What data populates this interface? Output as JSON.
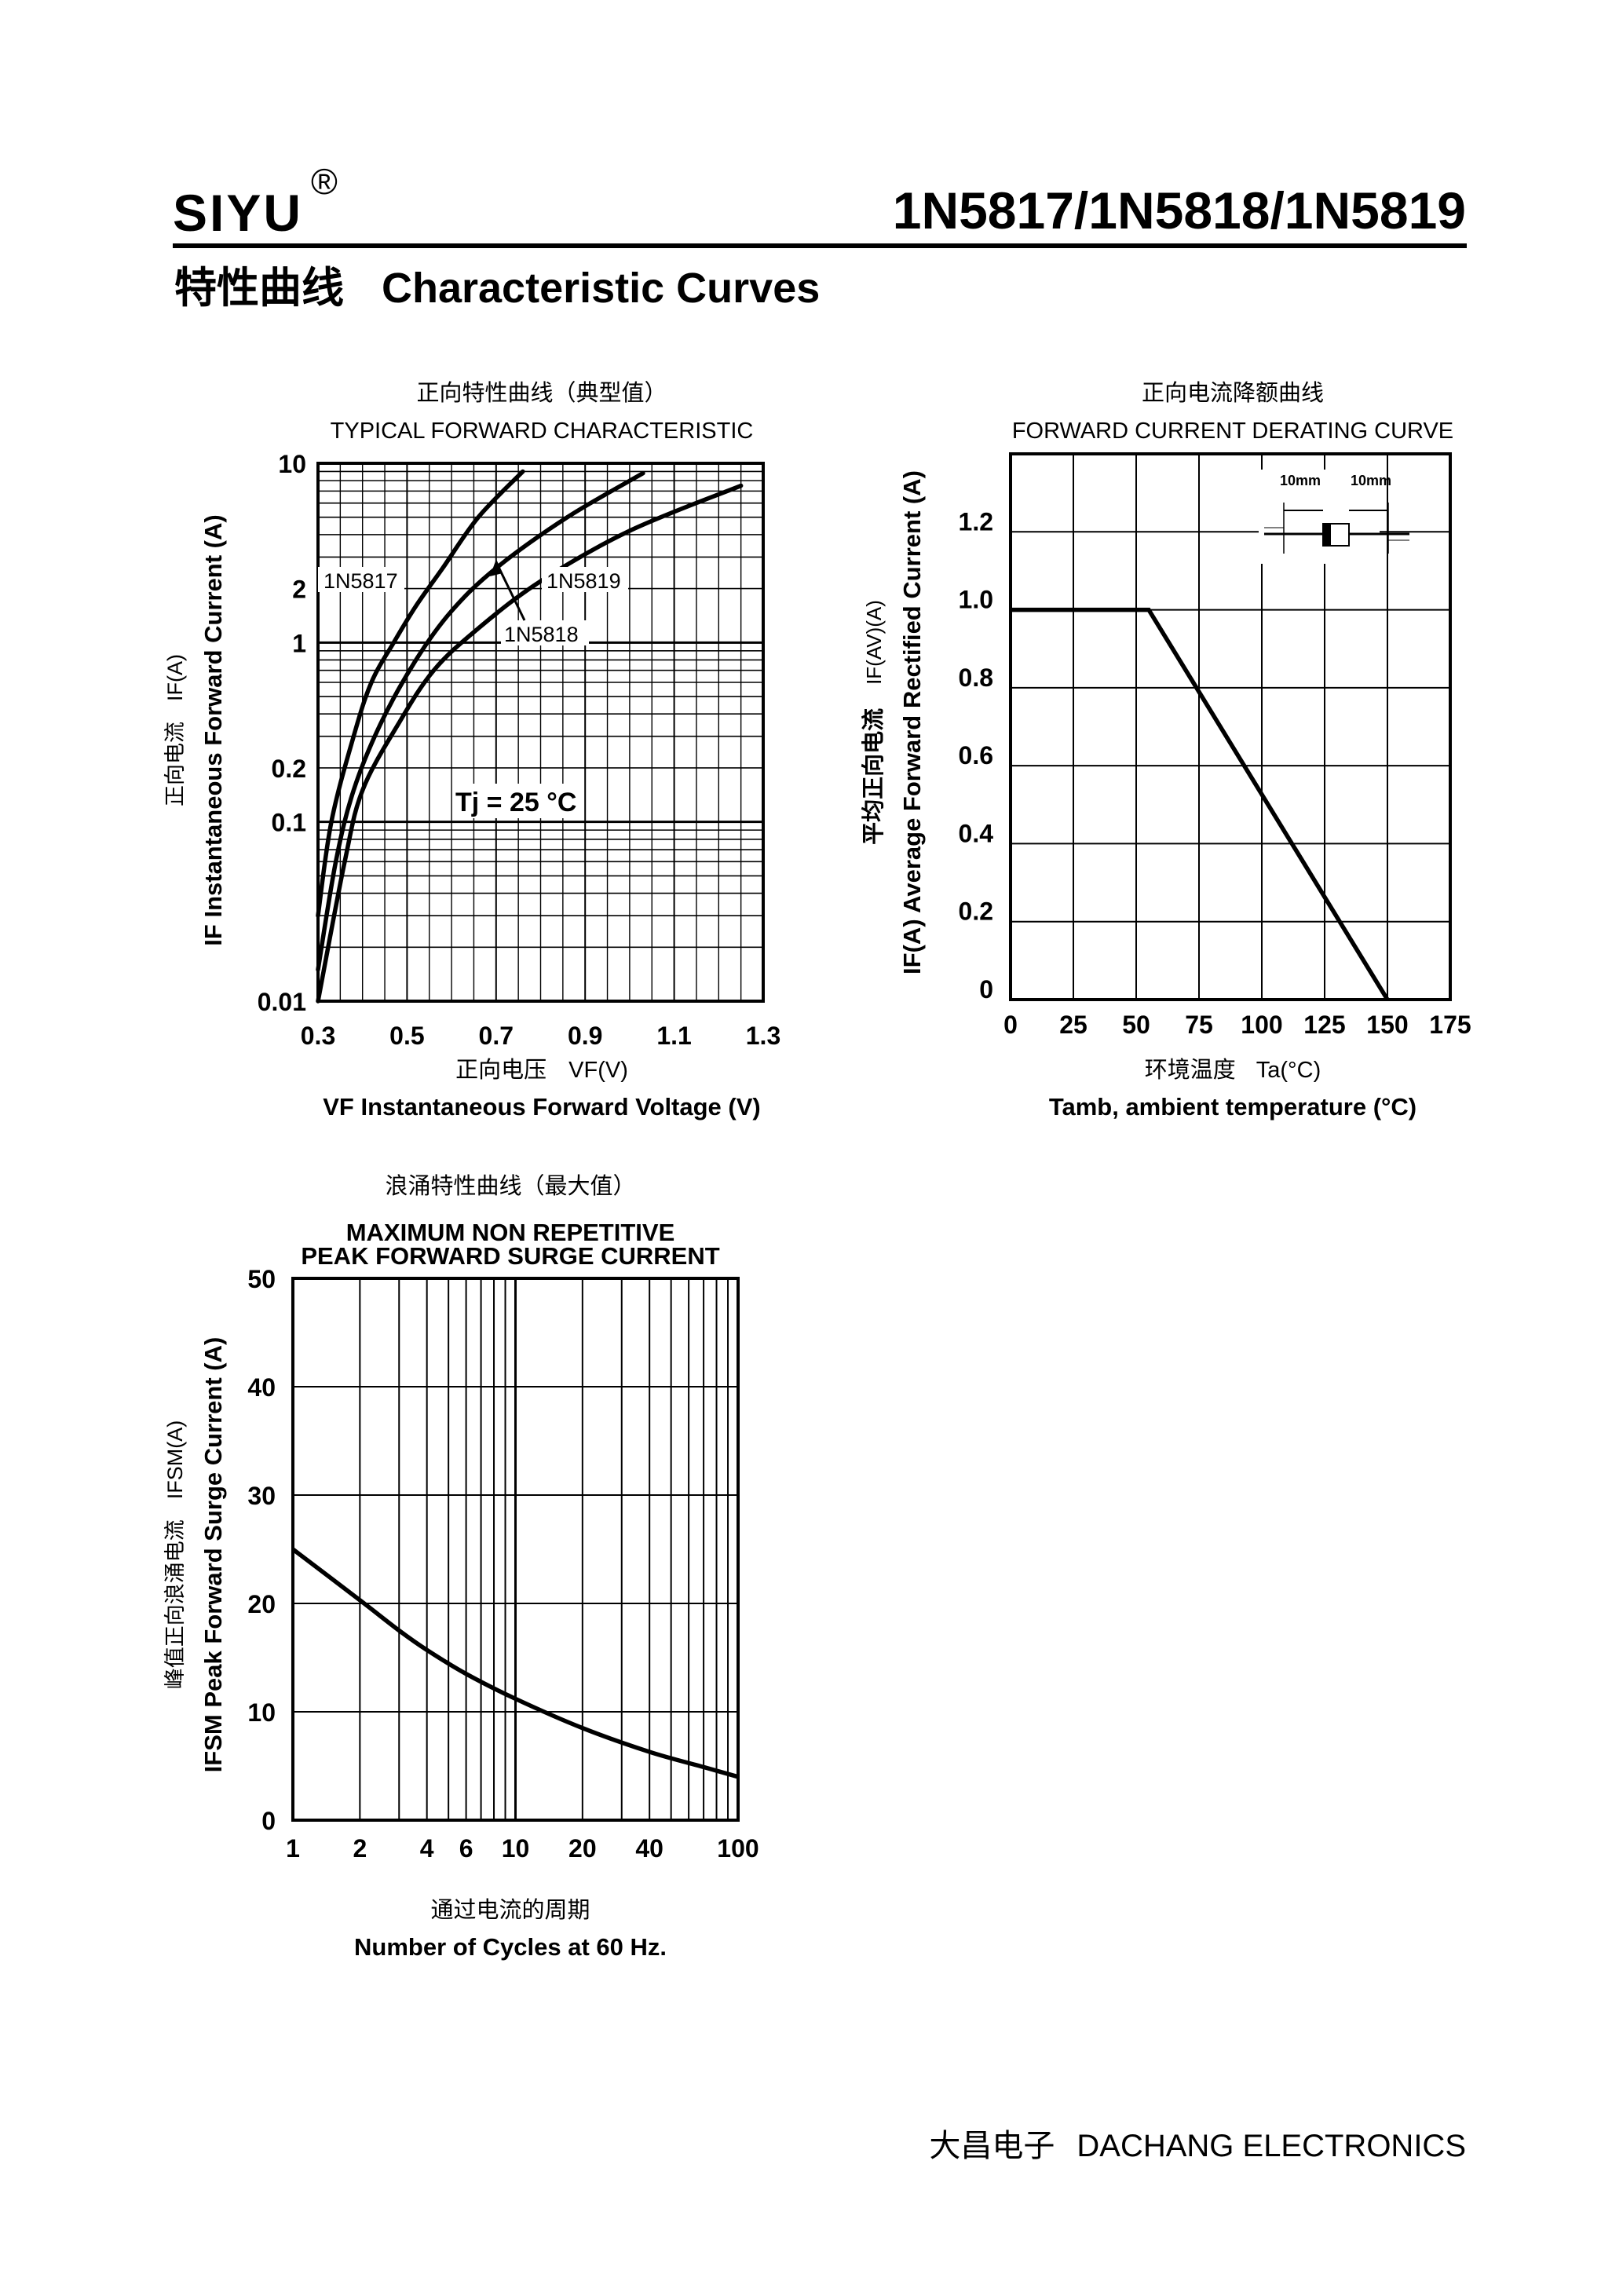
{
  "header": {
    "brand": "SIYU",
    "registered_mark": "®",
    "part_numbers": "1N5817/1N5818/1N5819",
    "section_title_cn": "特性曲线",
    "section_title_en": "Characteristic Curves"
  },
  "footer": {
    "company_cn": "大昌电子",
    "company_en": "DACHANG ELECTRONICS"
  },
  "chart_data": [
    {
      "id": "forward",
      "type": "line",
      "title_cn": "正向特性曲线（典型值）",
      "title": "TYPICAL FORWARD CHARACTERISTIC",
      "xlabel_cn": "正向电压",
      "xlabel_sym": "VF(V)",
      "xlabel": "VF Instantaneous Forward Voltage (V)",
      "ylabel_cn": "正向电流",
      "ylabel_sym": "IF(A)",
      "ylabel": "IF Instantaneous Forward Current (A)",
      "xlim": [
        0.3,
        1.3
      ],
      "ylim": [
        0.01,
        10
      ],
      "yscale": "log",
      "xticks": [
        "0.3",
        "0.5",
        "0.7",
        "0.9",
        "1.1",
        "1.3"
      ],
      "yticks": [
        {
          "value": 10,
          "label": "10"
        },
        {
          "value": 2,
          "label": "2"
        },
        {
          "value": 1,
          "label": "1"
        },
        {
          "value": 0.2,
          "label": "0.2"
        },
        {
          "value": 0.1,
          "label": "0.1"
        },
        {
          "value": 0.01,
          "label": "0.01"
        }
      ],
      "annotation": "Tj = 25 °C",
      "series": [
        {
          "name": "1N5817",
          "points": [
            [
              0.3,
              0.03
            ],
            [
              0.33,
              0.1
            ],
            [
              0.38,
              0.3
            ],
            [
              0.42,
              0.6
            ],
            [
              0.47,
              1.0
            ],
            [
              0.52,
              1.6
            ],
            [
              0.58,
              2.6
            ],
            [
              0.66,
              5.0
            ],
            [
              0.76,
              9.0
            ]
          ]
        },
        {
          "name": "1N5818",
          "points": [
            [
              0.3,
              0.015
            ],
            [
              0.34,
              0.06
            ],
            [
              0.38,
              0.15
            ],
            [
              0.44,
              0.35
            ],
            [
              0.52,
              0.8
            ],
            [
              0.6,
              1.5
            ],
            [
              0.7,
              2.6
            ],
            [
              0.86,
              5.0
            ],
            [
              1.03,
              8.8
            ]
          ]
        },
        {
          "name": "1N5819",
          "points": [
            [
              0.3,
              0.01
            ],
            [
              0.36,
              0.06
            ],
            [
              0.4,
              0.15
            ],
            [
              0.48,
              0.35
            ],
            [
              0.56,
              0.7
            ],
            [
              0.66,
              1.2
            ],
            [
              0.8,
              2.2
            ],
            [
              1.0,
              4.2
            ],
            [
              1.25,
              7.5
            ]
          ]
        }
      ]
    },
    {
      "id": "derating",
      "type": "line",
      "title_cn": "正向电流降额曲线",
      "title": "FORWARD CURRENT DERATING CURVE",
      "xlabel_cn": "环境温度",
      "xlabel_sym": "Ta(°C)",
      "xlabel": "Tamb, ambient temperature (°C)",
      "ylabel_cn": "平均正向电流",
      "ylabel_sym": "IF(AV)(A)",
      "ylabel": "IF(A) Average Forward Rectified Current (A)",
      "xlim": [
        0,
        175
      ],
      "ylim": [
        0,
        1.4
      ],
      "xticks": [
        "0",
        "25",
        "50",
        "75",
        "100",
        "125",
        "150",
        "175"
      ],
      "yticks": [
        "0",
        "0.2",
        "0.4",
        "0.6",
        "0.8",
        "1.0",
        "1.2"
      ],
      "inset_labels": [
        "10mm",
        "10mm"
      ],
      "series": [
        {
          "name": "IF(AV)",
          "points": [
            [
              0,
              1.0
            ],
            [
              55,
              1.0
            ],
            [
              150,
              0
            ]
          ]
        }
      ]
    },
    {
      "id": "surge",
      "type": "line",
      "title_cn": "浪涌特性曲线（最大值）",
      "title_line1": "MAXIMUM NON REPETITIVE",
      "title_line2": "PEAK FORWARD SURGE CURRENT",
      "xlabel_cn": "通过电流的周期",
      "xlabel": "Number  of  Cycles at 60 Hz.",
      "ylabel_cn": "峰值正向浪涌电流",
      "ylabel_sym": "IFSM(A)",
      "ylabel": "IFSM Peak Forward Surge Current (A)",
      "xscale": "log",
      "xlim": [
        1,
        100
      ],
      "ylim": [
        0,
        50
      ],
      "xticks": [
        {
          "value": 1,
          "label": "1"
        },
        {
          "value": 2,
          "label": "2"
        },
        {
          "value": 4,
          "label": "4"
        },
        {
          "value": 6,
          "label": "6"
        },
        {
          "value": 10,
          "label": "10"
        },
        {
          "value": 20,
          "label": "20"
        },
        {
          "value": 40,
          "label": "40"
        },
        {
          "value": 100,
          "label": "100"
        }
      ],
      "yticks": [
        "0",
        "10",
        "20",
        "30",
        "40",
        "50"
      ],
      "series": [
        {
          "name": "IFSM",
          "points": [
            [
              1,
              25
            ],
            [
              2,
              20.3
            ],
            [
              3,
              17.5
            ],
            [
              4,
              15.7
            ],
            [
              6,
              13.5
            ],
            [
              10,
              11.2
            ],
            [
              20,
              8.5
            ],
            [
              40,
              6.3
            ],
            [
              70,
              4.9
            ],
            [
              100,
              4.0
            ]
          ]
        }
      ]
    }
  ]
}
